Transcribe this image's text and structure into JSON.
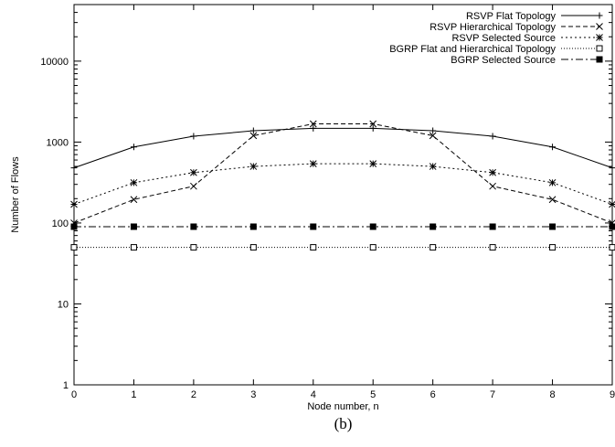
{
  "chart_data": {
    "type": "line",
    "xlabel": "Node number, n",
    "ylabel": "Number of Flows",
    "caption": "(b)",
    "yscale": "log",
    "xlim": [
      0,
      9
    ],
    "ylim": [
      1,
      50000
    ],
    "xticks": [
      0,
      1,
      2,
      3,
      4,
      5,
      6,
      7,
      8,
      9
    ],
    "yticks": [
      1,
      10,
      100,
      1000,
      10000
    ],
    "grid": false,
    "legend_position": "top-right",
    "x": [
      0,
      1,
      2,
      3,
      4,
      5,
      6,
      7,
      8,
      9
    ],
    "series": [
      {
        "name": "RSVP Flat Topology",
        "dash": "solid",
        "marker": "plus",
        "values": [
          480,
          870,
          1180,
          1380,
          1480,
          1480,
          1380,
          1180,
          870,
          480
        ]
      },
      {
        "name": "RSVP Hierarchical Topology",
        "dash": "dashed",
        "marker": "x",
        "values": [
          100,
          195,
          285,
          1200,
          1680,
          1680,
          1200,
          285,
          195,
          100
        ]
      },
      {
        "name": "RSVP Selected Source",
        "dash": "dotted",
        "marker": "star",
        "values": [
          170,
          315,
          420,
          500,
          540,
          540,
          500,
          420,
          315,
          170
        ]
      },
      {
        "name": "BGRP Flat and Hierarchical Topology",
        "dash": "fine-dotted",
        "marker": "open-square",
        "values": [
          50,
          50,
          50,
          50,
          50,
          50,
          50,
          50,
          50,
          50
        ]
      },
      {
        "name": "BGRP Selected Source",
        "dash": "dash-dot",
        "marker": "filled-square",
        "values": [
          90,
          90,
          90,
          90,
          90,
          90,
          90,
          90,
          90,
          90
        ]
      }
    ]
  }
}
